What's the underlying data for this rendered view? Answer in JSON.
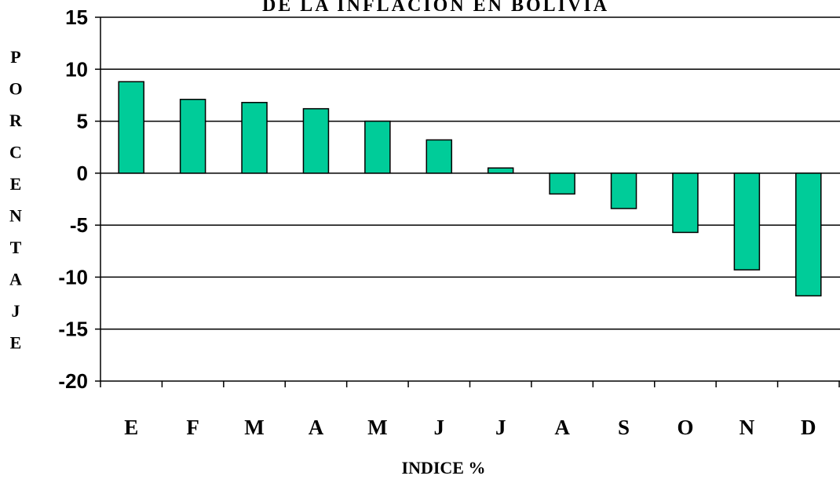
{
  "chart_data": {
    "type": "bar",
    "title": "DE LA INFLACION EN BOLIVIA",
    "xlabel": "INDICE %",
    "ylabel": "PORCENTAJE",
    "categories": [
      "E",
      "F",
      "M",
      "A",
      "M",
      "J",
      "J",
      "A",
      "S",
      "O",
      "N",
      "D"
    ],
    "values": [
      8.8,
      7.1,
      6.8,
      6.2,
      5.0,
      3.2,
      0.5,
      -2.0,
      -3.4,
      -5.7,
      -9.3,
      -11.8
    ],
    "ylim": [
      -20,
      15
    ],
    "yticks": [
      15,
      10,
      5,
      0,
      -5,
      -10,
      -15,
      -20
    ],
    "grid": true,
    "legend": "none",
    "colors": {
      "bar": "#00CC99",
      "stroke": "#000000"
    }
  }
}
